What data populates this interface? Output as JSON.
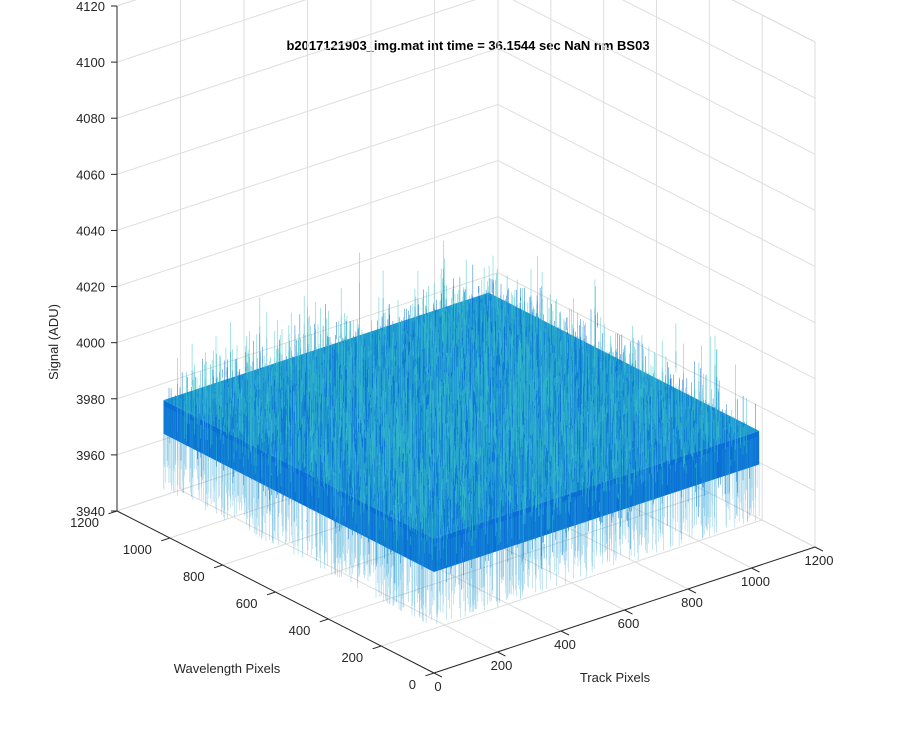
{
  "chart_data": {
    "type": "surface",
    "title": "b2017121903_img.mat int time = 36.1544 sec  NaN nm BS03",
    "xlabel": "Track Pixels",
    "ylabel": "Wavelength Pixels",
    "zlabel": "Signal (ADU)",
    "xlim": [
      0,
      1200
    ],
    "ylim": [
      0,
      1200
    ],
    "zlim": [
      3940,
      4120
    ],
    "xticks": [
      0,
      200,
      400,
      600,
      800,
      1000,
      1200
    ],
    "yticks": [
      0,
      200,
      400,
      600,
      800,
      1000,
      1200
    ],
    "zticks": [
      3940,
      3960,
      3980,
      4000,
      4020,
      4040,
      4060,
      4080,
      4100,
      4120
    ],
    "xtick_labels": [
      "0",
      "200",
      "400",
      "600",
      "800",
      "1000",
      "1200"
    ],
    "ytick_labels": [
      "0",
      "200",
      "400",
      "600",
      "800",
      "1000",
      "1200"
    ],
    "ztick_labels": [
      "3940",
      "3960",
      "3980",
      "4000",
      "4020",
      "4040",
      "4060",
      "4080",
      "4100",
      "4120"
    ],
    "grid": true,
    "surface_extent": {
      "x": [
        0,
        1024
      ],
      "y": [
        0,
        1024
      ]
    },
    "signal_mean": 3984,
    "signal_spread": [
      3960,
      4020
    ],
    "colors": {
      "dark": "#0a6fd6",
      "mid": "#1f9bd1",
      "light": "#3cc3c8"
    }
  }
}
